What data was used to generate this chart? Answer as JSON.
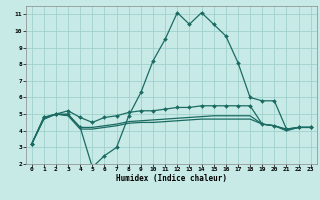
{
  "xlabel": "Humidex (Indice chaleur)",
  "bg_color": "#c8eae6",
  "grid_color": "#a0d0cc",
  "line_color": "#1a6b62",
  "xlim": [
    -0.5,
    23.5
  ],
  "ylim": [
    2,
    11.5
  ],
  "xticks": [
    0,
    1,
    2,
    3,
    4,
    5,
    6,
    7,
    8,
    9,
    10,
    11,
    12,
    13,
    14,
    15,
    16,
    17,
    18,
    19,
    20,
    21,
    22,
    23
  ],
  "yticks": [
    2,
    3,
    4,
    5,
    6,
    7,
    8,
    9,
    10,
    11
  ],
  "line_peak": [
    3.2,
    4.8,
    5.0,
    5.0,
    4.2,
    1.8,
    2.5,
    3.0,
    4.9,
    6.3,
    8.2,
    9.5,
    11.1,
    10.4,
    11.1,
    10.4,
    9.7,
    8.1,
    6.0,
    5.8,
    5.8,
    4.1,
    4.2,
    4.2
  ],
  "line_flat_top": [
    3.2,
    4.8,
    5.0,
    5.2,
    4.8,
    4.5,
    4.8,
    4.9,
    5.1,
    5.2,
    5.2,
    5.3,
    5.4,
    5.4,
    5.5,
    5.5,
    5.5,
    5.5,
    5.5,
    4.4,
    4.3,
    4.1,
    4.2,
    4.2
  ],
  "line_flat_mid": [
    3.2,
    4.7,
    5.0,
    4.95,
    4.2,
    4.2,
    4.3,
    4.4,
    4.55,
    4.6,
    4.65,
    4.7,
    4.75,
    4.8,
    4.85,
    4.9,
    4.9,
    4.9,
    4.9,
    4.4,
    4.3,
    4.05,
    4.2,
    4.2
  ],
  "line_flat_bot": [
    3.2,
    4.7,
    5.0,
    4.9,
    4.1,
    4.1,
    4.2,
    4.3,
    4.45,
    4.5,
    4.5,
    4.55,
    4.6,
    4.65,
    4.7,
    4.7,
    4.7,
    4.7,
    4.7,
    4.4,
    4.3,
    4.0,
    4.2,
    4.2
  ]
}
